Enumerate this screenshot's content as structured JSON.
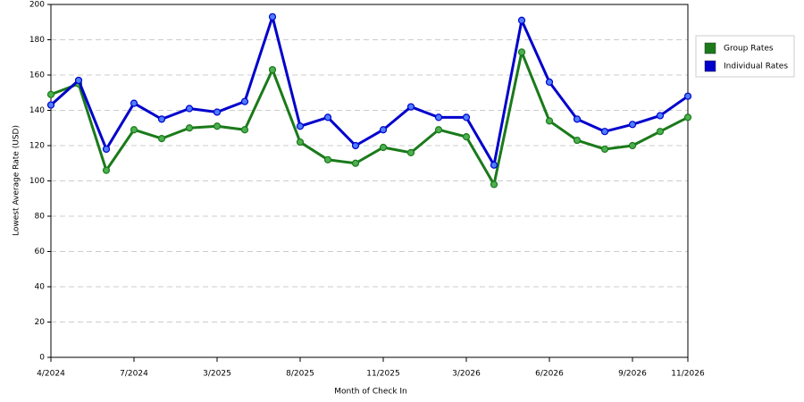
{
  "chart_data": {
    "type": "line",
    "x_label": "Month of Check In",
    "y_label": "Lowest Average Rate (USD)",
    "categories": [
      "4/2024",
      null,
      null,
      "7/2024",
      null,
      null,
      "3/2025",
      null,
      null,
      "8/2025",
      null,
      null,
      "11/2025",
      null,
      null,
      "3/2026",
      null,
      null,
      "6/2026",
      null,
      null,
      "9/2026",
      null,
      "11/2026"
    ],
    "series": [
      {
        "name": "Group Rates",
        "color": "#1a7a1a",
        "marker": "#4caf50",
        "values": [
          149,
          155,
          106,
          129,
          124,
          130,
          131,
          129,
          163,
          122,
          112,
          110,
          119,
          116,
          129,
          125,
          98,
          173,
          134,
          123,
          118,
          120,
          128,
          136
        ]
      },
      {
        "name": "Individual Rates",
        "color": "#0000cc",
        "marker": "#4d7fff",
        "values": [
          143,
          157,
          118,
          144,
          135,
          141,
          139,
          145,
          193,
          131,
          136,
          120,
          129,
          142,
          136,
          136,
          109,
          191,
          156,
          135,
          128,
          132,
          137,
          148
        ]
      }
    ],
    "ylim": [
      0,
      200
    ],
    "yticks": [
      0,
      20,
      40,
      60,
      80,
      100,
      120,
      140,
      160,
      180,
      200
    ],
    "grid": true,
    "legend": "top-right"
  }
}
